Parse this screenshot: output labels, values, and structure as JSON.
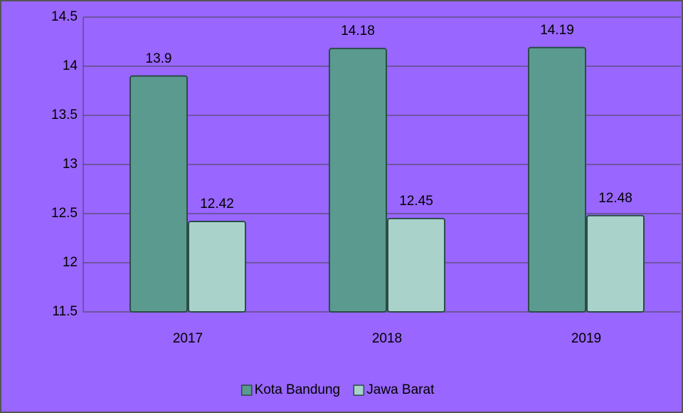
{
  "chart_data": {
    "type": "bar",
    "categories": [
      "2017",
      "2018",
      "2019"
    ],
    "series": [
      {
        "name": "Kota Bandung",
        "color": "#5b9a8f",
        "values": [
          13.9,
          14.18,
          14.19
        ]
      },
      {
        "name": "Jawa Barat",
        "color": "#a9d2ca",
        "values": [
          12.42,
          12.45,
          12.48
        ]
      }
    ],
    "ylim": [
      11.5,
      14.5
    ],
    "yticks": [
      11.5,
      12,
      12.5,
      13,
      13.5,
      14,
      14.5
    ],
    "grid": true,
    "legend": "bottom"
  }
}
